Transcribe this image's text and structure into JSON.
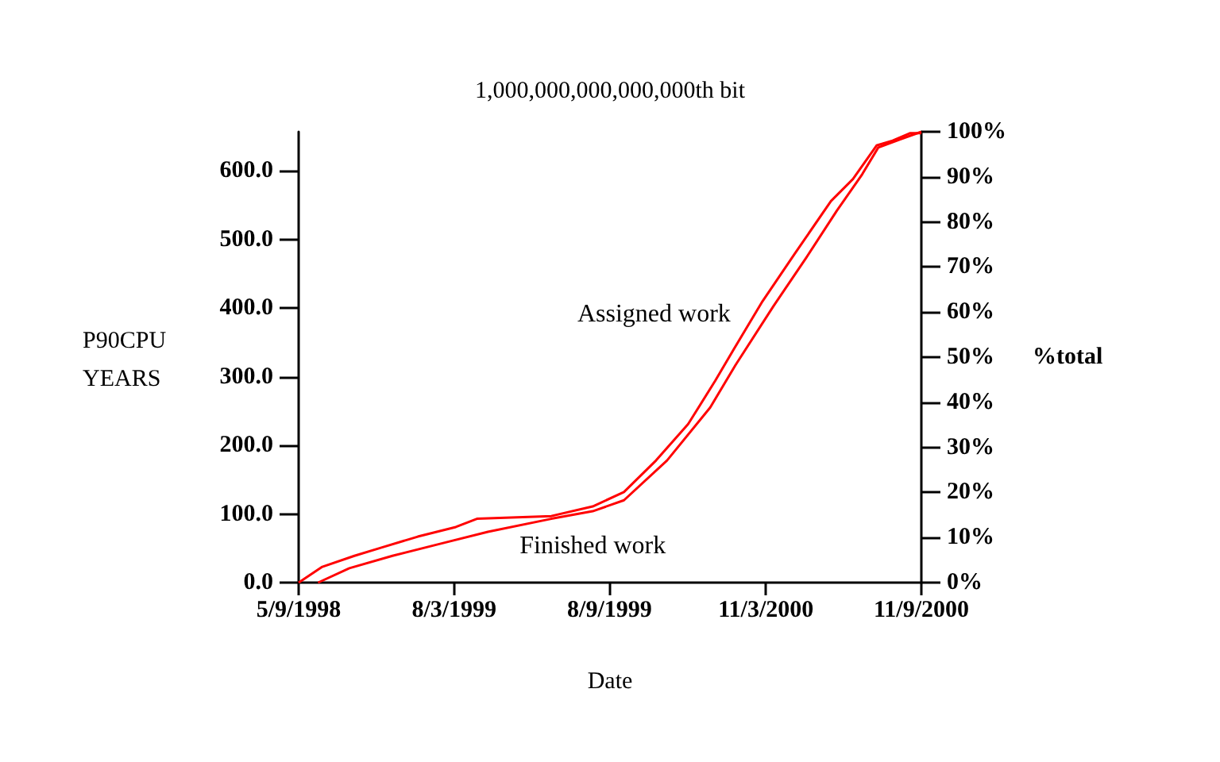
{
  "chart_data": {
    "type": "line",
    "title": "1,000,000,000,000,000th bit",
    "xlabel": "Date",
    "ylabel": "P90CPU YEARS",
    "y2label": "%total",
    "grid": false,
    "marker": "none",
    "line_style": "solid",
    "xlim": [
      "1998-09-05",
      "2000-09-11"
    ],
    "xticks": [
      {
        "value": "1998-09-05",
        "label": "5/9/1998"
      },
      {
        "value": "1999-03-08",
        "label": "8/3/1999"
      },
      {
        "value": "1999-09-08",
        "label": "8/9/1999"
      },
      {
        "value": "2000-03-11",
        "label": "11/3/2000"
      },
      {
        "value": "2000-09-11",
        "label": "11/9/2000"
      }
    ],
    "ylim": [
      0,
      657
    ],
    "yticks": [
      {
        "value": 0,
        "label": "0.0"
      },
      {
        "value": 100,
        "label": "100.0"
      },
      {
        "value": 200,
        "label": "200.0"
      },
      {
        "value": 300,
        "label": "300.0"
      },
      {
        "value": 400,
        "label": "400.0"
      },
      {
        "value": 500,
        "label": "500.0"
      },
      {
        "value": 600,
        "label": "600.0"
      }
    ],
    "y2lim": [
      0,
      100
    ],
    "y2ticks": [
      {
        "value": 0,
        "label": "0%"
      },
      {
        "value": 10,
        "label": "10%"
      },
      {
        "value": 20,
        "label": "20%"
      },
      {
        "value": 30,
        "label": "30%"
      },
      {
        "value": 40,
        "label": "40%"
      },
      {
        "value": 50,
        "label": "50%"
      },
      {
        "value": 60,
        "label": "60%"
      },
      {
        "value": 70,
        "label": "70%"
      },
      {
        "value": 80,
        "label": "80%"
      },
      {
        "value": 90,
        "label": "90%"
      },
      {
        "value": 100,
        "label": "100%"
      }
    ],
    "series": [
      {
        "name": "Assigned work",
        "color": "#ff0000",
        "x": [
          "1998-09-05",
          "1998-10-03",
          "1998-11-10",
          "1998-12-12",
          "1999-01-24",
          "1999-03-10",
          "1999-04-04",
          "1999-07-01",
          "1999-08-19",
          "1999-09-25",
          "1999-11-02",
          "1999-12-10",
          "2000-01-11",
          "2000-02-02",
          "2000-03-07",
          "2000-04-14",
          "2000-05-27",
          "2000-06-22",
          "2000-07-20",
          "2000-08-08",
          "2000-08-29",
          "2000-09-11"
        ],
        "values": [
          0,
          23,
          39,
          51,
          67,
          81,
          93,
          97,
          111,
          132,
          178,
          231,
          294,
          340,
          410,
          479,
          556,
          588,
          637,
          644,
          655,
          655
        ]
      },
      {
        "name": "Finished work",
        "color": "#ff0000",
        "x": [
          "1998-09-28",
          "1998-11-04",
          "1998-12-25",
          "1999-02-24",
          "1999-04-17",
          "1999-07-01",
          "1999-08-19",
          "1999-09-25",
          "1999-11-15",
          "2000-01-05",
          "2000-02-04",
          "2000-03-20",
          "2000-04-27",
          "2000-06-03",
          "2000-07-03",
          "2000-07-22",
          "2000-08-17",
          "2000-09-11"
        ],
        "values": [
          0,
          21,
          39,
          58,
          74,
          93,
          104,
          120,
          178,
          255,
          317,
          403,
          472,
          542,
          595,
          634,
          646,
          657
        ]
      }
    ]
  }
}
